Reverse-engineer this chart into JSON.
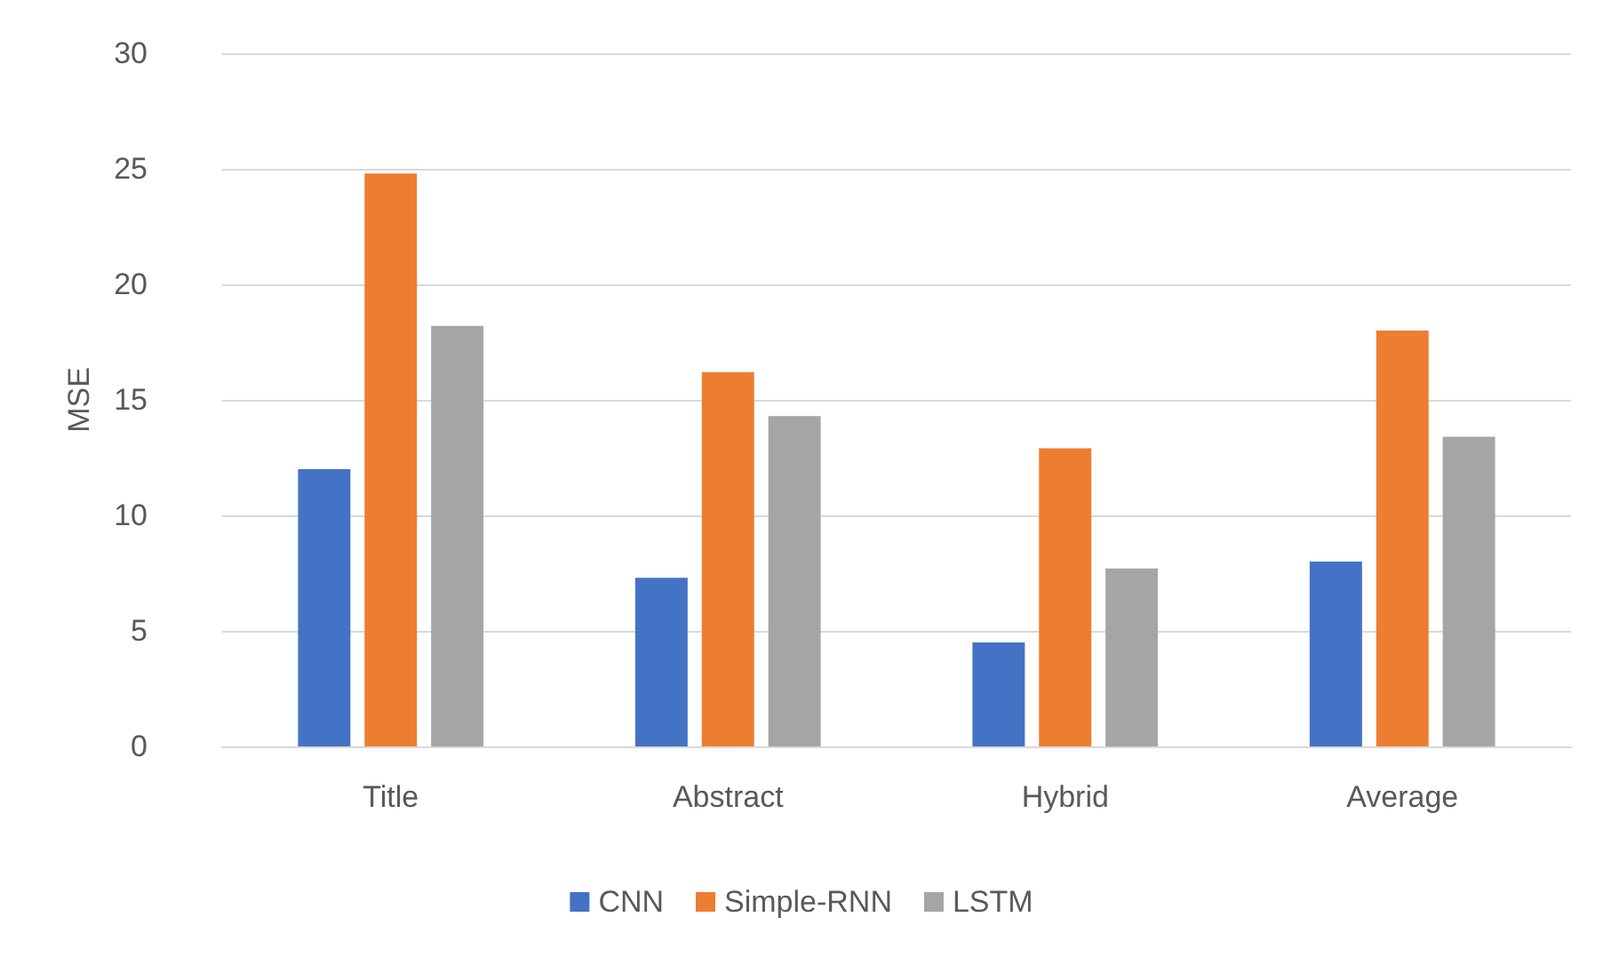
{
  "chart_data": {
    "type": "bar",
    "ylabel": "MSE",
    "categories": [
      "Title",
      "Abstract",
      "Hybrid",
      "Average"
    ],
    "series": [
      {
        "name": "CNN",
        "color": "#4472c4",
        "values": [
          12.0,
          7.3,
          4.5,
          8.0
        ]
      },
      {
        "name": "Simple-RNN",
        "color": "#ed7d31",
        "values": [
          24.8,
          16.2,
          12.9,
          18.0
        ]
      },
      {
        "name": "LSTM",
        "color": "#a5a5a5",
        "values": [
          18.2,
          14.3,
          7.7,
          13.4
        ]
      }
    ],
    "ylim": [
      0,
      30
    ],
    "yticks": [
      0,
      5,
      10,
      15,
      20,
      25,
      30
    ],
    "grid": "y",
    "legend": "bottom"
  }
}
